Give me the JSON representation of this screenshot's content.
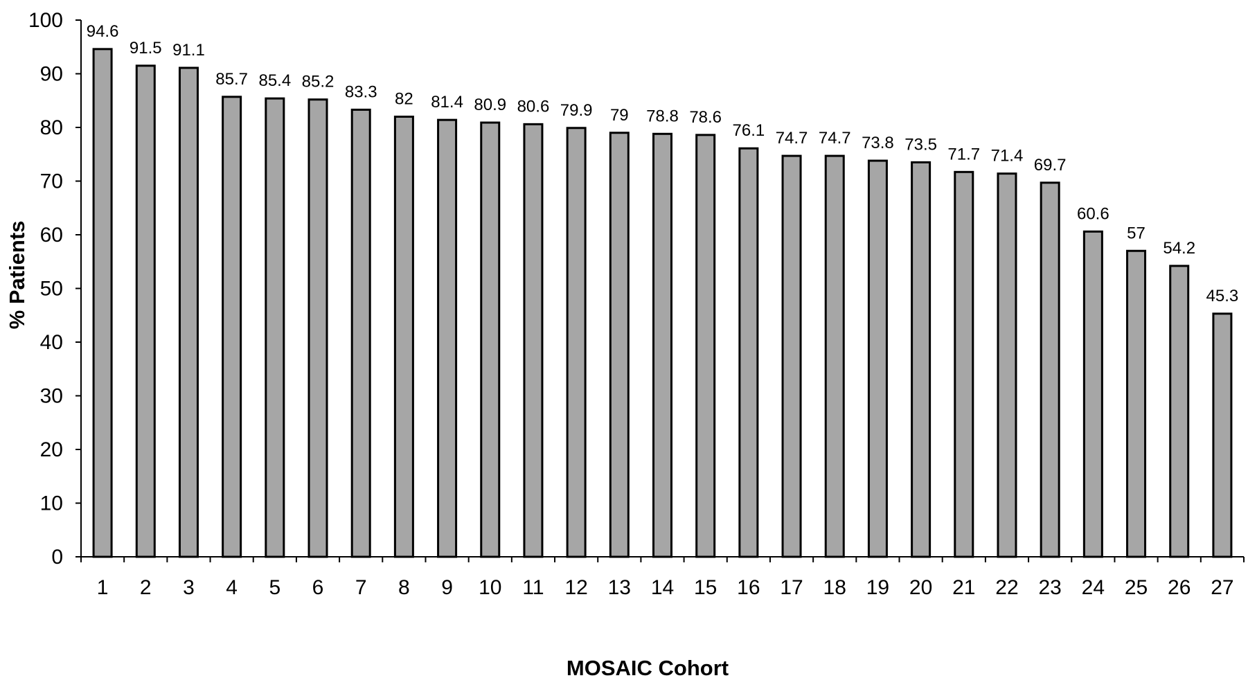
{
  "chart_data": {
    "type": "bar",
    "categories": [
      "1",
      "2",
      "3",
      "4",
      "5",
      "6",
      "7",
      "8",
      "9",
      "10",
      "11",
      "12",
      "13",
      "14",
      "15",
      "16",
      "17",
      "18",
      "19",
      "20",
      "21",
      "22",
      "23",
      "24",
      "25",
      "26",
      "27"
    ],
    "values": [
      94.6,
      91.5,
      91.1,
      85.7,
      85.4,
      85.2,
      83.3,
      82,
      81.4,
      80.9,
      80.6,
      79.9,
      79,
      78.8,
      78.6,
      76.1,
      74.7,
      74.7,
      73.8,
      73.5,
      71.7,
      71.4,
      69.7,
      60.6,
      57,
      54.2,
      45.3
    ],
    "data_labels": [
      "94.6",
      "91.5",
      "91.1",
      "85.7",
      "85.4",
      "85.2",
      "83.3",
      "82",
      "81.4",
      "80.9",
      "80.6",
      "79.9",
      "79",
      "78.8",
      "78.6",
      "76.1",
      "74.7",
      "74.7",
      "73.8",
      "73.5",
      "71.7",
      "71.4",
      "69.7",
      "60.6",
      "57",
      "54.2",
      "45.3"
    ],
    "xlabel": "MOSAIC Cohort",
    "ylabel": "% Patients",
    "ylim": [
      0,
      100
    ],
    "yticks": [
      "0",
      "10",
      "20",
      "30",
      "40",
      "50",
      "60",
      "70",
      "80",
      "90",
      "100"
    ],
    "grid": false,
    "bar_color": "#a6a6a6"
  }
}
